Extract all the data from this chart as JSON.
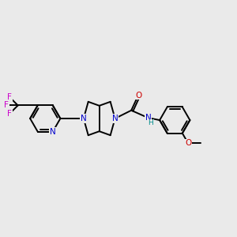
{
  "background_color": "#EAEAEA",
  "bond_color": "#000000",
  "bond_width": 1.4,
  "atom_colors": {
    "N": "#0000CC",
    "O": "#CC0000",
    "F": "#CC00CC",
    "H": "#008B8B"
  },
  "font_size": 7.5
}
